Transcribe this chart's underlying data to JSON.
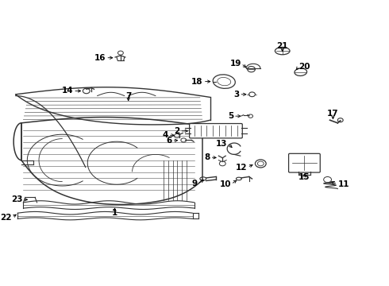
{
  "background_color": "#ffffff",
  "line_color": "#333333",
  "label_fontsize": 7.5,
  "label_color": "#000000",
  "figsize": [
    4.9,
    3.6
  ],
  "dpi": 100,
  "parts_labels": {
    "1": [
      0.295,
      0.295,
      0.295,
      0.26
    ],
    "2": [
      0.53,
      0.535,
      0.49,
      0.54
    ],
    "3": [
      0.645,
      0.65,
      0.625,
      0.65
    ],
    "4": [
      0.47,
      0.53,
      0.45,
      0.53
    ],
    "5": [
      0.65,
      0.59,
      0.625,
      0.59
    ],
    "6": [
      0.49,
      0.51,
      0.468,
      0.508
    ],
    "7": [
      0.33,
      0.62,
      0.33,
      0.66
    ],
    "8": [
      0.57,
      0.45,
      0.548,
      0.46
    ],
    "9": [
      0.548,
      0.37,
      0.528,
      0.355
    ],
    "10": [
      0.625,
      0.37,
      0.608,
      0.355
    ],
    "11": [
      0.835,
      0.37,
      0.845,
      0.355
    ],
    "12": [
      0.668,
      0.425,
      0.648,
      0.415
    ],
    "13": [
      0.598,
      0.49,
      0.59,
      0.51
    ],
    "14": [
      0.215,
      0.68,
      0.185,
      0.68
    ],
    "15": [
      0.79,
      0.415,
      0.792,
      0.395
    ],
    "16": [
      0.31,
      0.8,
      0.285,
      0.8
    ],
    "17": [
      0.865,
      0.575,
      0.848,
      0.6
    ],
    "18": [
      0.57,
      0.72,
      0.538,
      0.72
    ],
    "19": [
      0.638,
      0.745,
      0.625,
      0.77
    ],
    "20": [
      0.76,
      0.74,
      0.768,
      0.76
    ],
    "21": [
      0.72,
      0.82,
      0.72,
      0.845
    ],
    "22": [
      0.068,
      0.255,
      0.045,
      0.24
    ],
    "23": [
      0.133,
      0.295,
      0.112,
      0.3
    ]
  }
}
